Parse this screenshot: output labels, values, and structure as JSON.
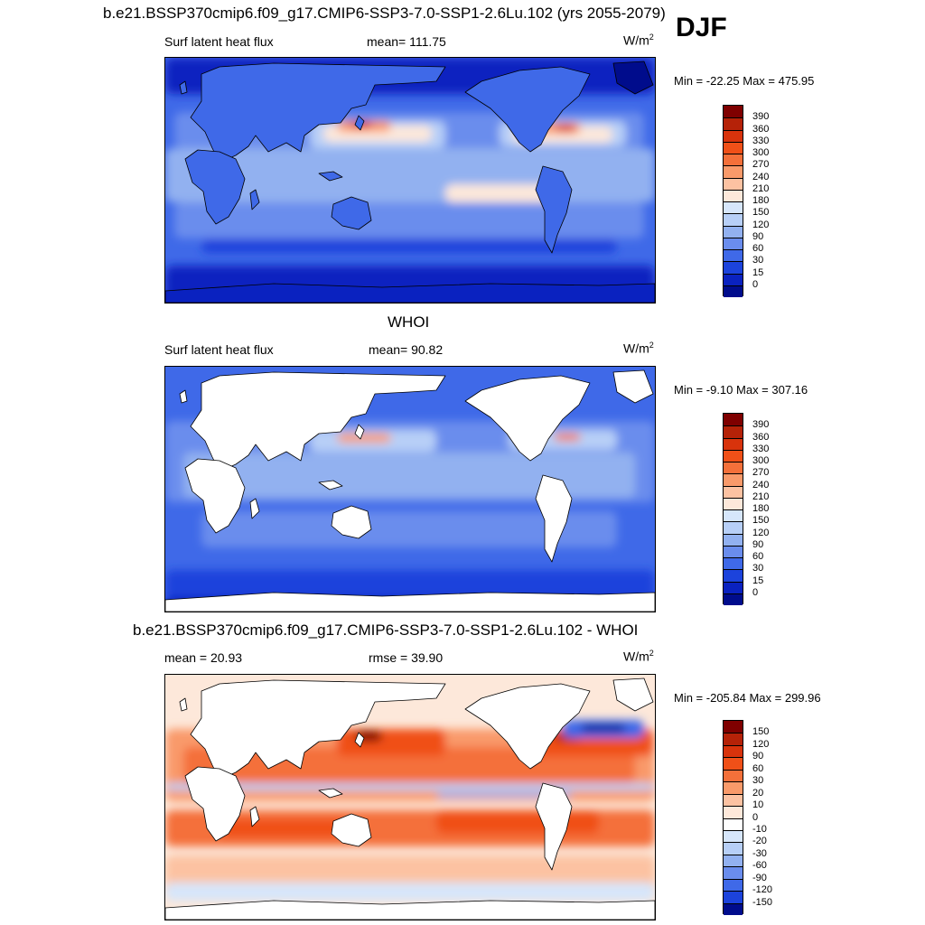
{
  "title": "b.e21.BSSP370cmip6.f09_g17.CMIP6-SSP3-7.0-SSP1-2.6Lu.102 (yrs 2055-2079)",
  "season": "DJF",
  "panels": [
    {
      "id": "model",
      "heading": "",
      "left_label": "Surf latent heat flux",
      "center_label": "mean= 111.75",
      "units_base": "W/m",
      "units_exp": "2",
      "minmax": "Min = -22.25 Max = 475.95",
      "land_masked": false,
      "colorbar": {
        "labels": [
          "390",
          "360",
          "330",
          "300",
          "270",
          "240",
          "210",
          "180",
          "150",
          "120",
          "90",
          "60",
          "30",
          "15",
          "0"
        ],
        "colors": [
          "#7f0000",
          "#b52208",
          "#d8330c",
          "#f05018",
          "#f4703a",
          "#f99a6a",
          "#fcc2a2",
          "#fde8da",
          "#d6e6fb",
          "#b7cff7",
          "#92b1f0",
          "#6a8ded",
          "#3f69e8",
          "#1c43dc",
          "#0a22c0",
          "#000c8c"
        ]
      }
    },
    {
      "id": "obs",
      "heading": "WHOI",
      "left_label": "Surf latent heat flux",
      "center_label": "mean=  90.82",
      "units_base": "W/m",
      "units_exp": "2",
      "minmax": "Min =  -9.10 Max = 307.16",
      "land_masked": true,
      "colorbar": {
        "labels": [
          "390",
          "360",
          "330",
          "300",
          "270",
          "240",
          "210",
          "180",
          "150",
          "120",
          "90",
          "60",
          "30",
          "15",
          "0"
        ],
        "colors": [
          "#7f0000",
          "#b52208",
          "#d8330c",
          "#f05018",
          "#f4703a",
          "#f99a6a",
          "#fcc2a2",
          "#fde8da",
          "#d6e6fb",
          "#b7cff7",
          "#92b1f0",
          "#6a8ded",
          "#3f69e8",
          "#1c43dc",
          "#0a22c0",
          "#000c8c"
        ]
      }
    },
    {
      "id": "diff",
      "heading": "b.e21.BSSP370cmip6.f09_g17.CMIP6-SSP3-7.0-SSP1-2.6Lu.102 - WHOI",
      "left_label": "mean =  20.93",
      "center_label": "rmse =  39.90",
      "units_base": "W/m",
      "units_exp": "2",
      "minmax": "Min = -205.84 Max = 299.96",
      "land_masked": true,
      "colorbar": {
        "labels": [
          "150",
          "120",
          "90",
          "60",
          "30",
          "20",
          "10",
          "0",
          "-10",
          "-20",
          "-30",
          "-60",
          "-90",
          "-120",
          "-150"
        ],
        "colors": [
          "#7f0000",
          "#b52208",
          "#d8330c",
          "#f05018",
          "#f4703a",
          "#f99a6a",
          "#fcc2a2",
          "#fde8da",
          "#ffffff",
          "#d6e6fb",
          "#b7cff7",
          "#92b1f0",
          "#6a8ded",
          "#3f69e8",
          "#1c43dc",
          "#000c8c"
        ]
      }
    }
  ]
}
